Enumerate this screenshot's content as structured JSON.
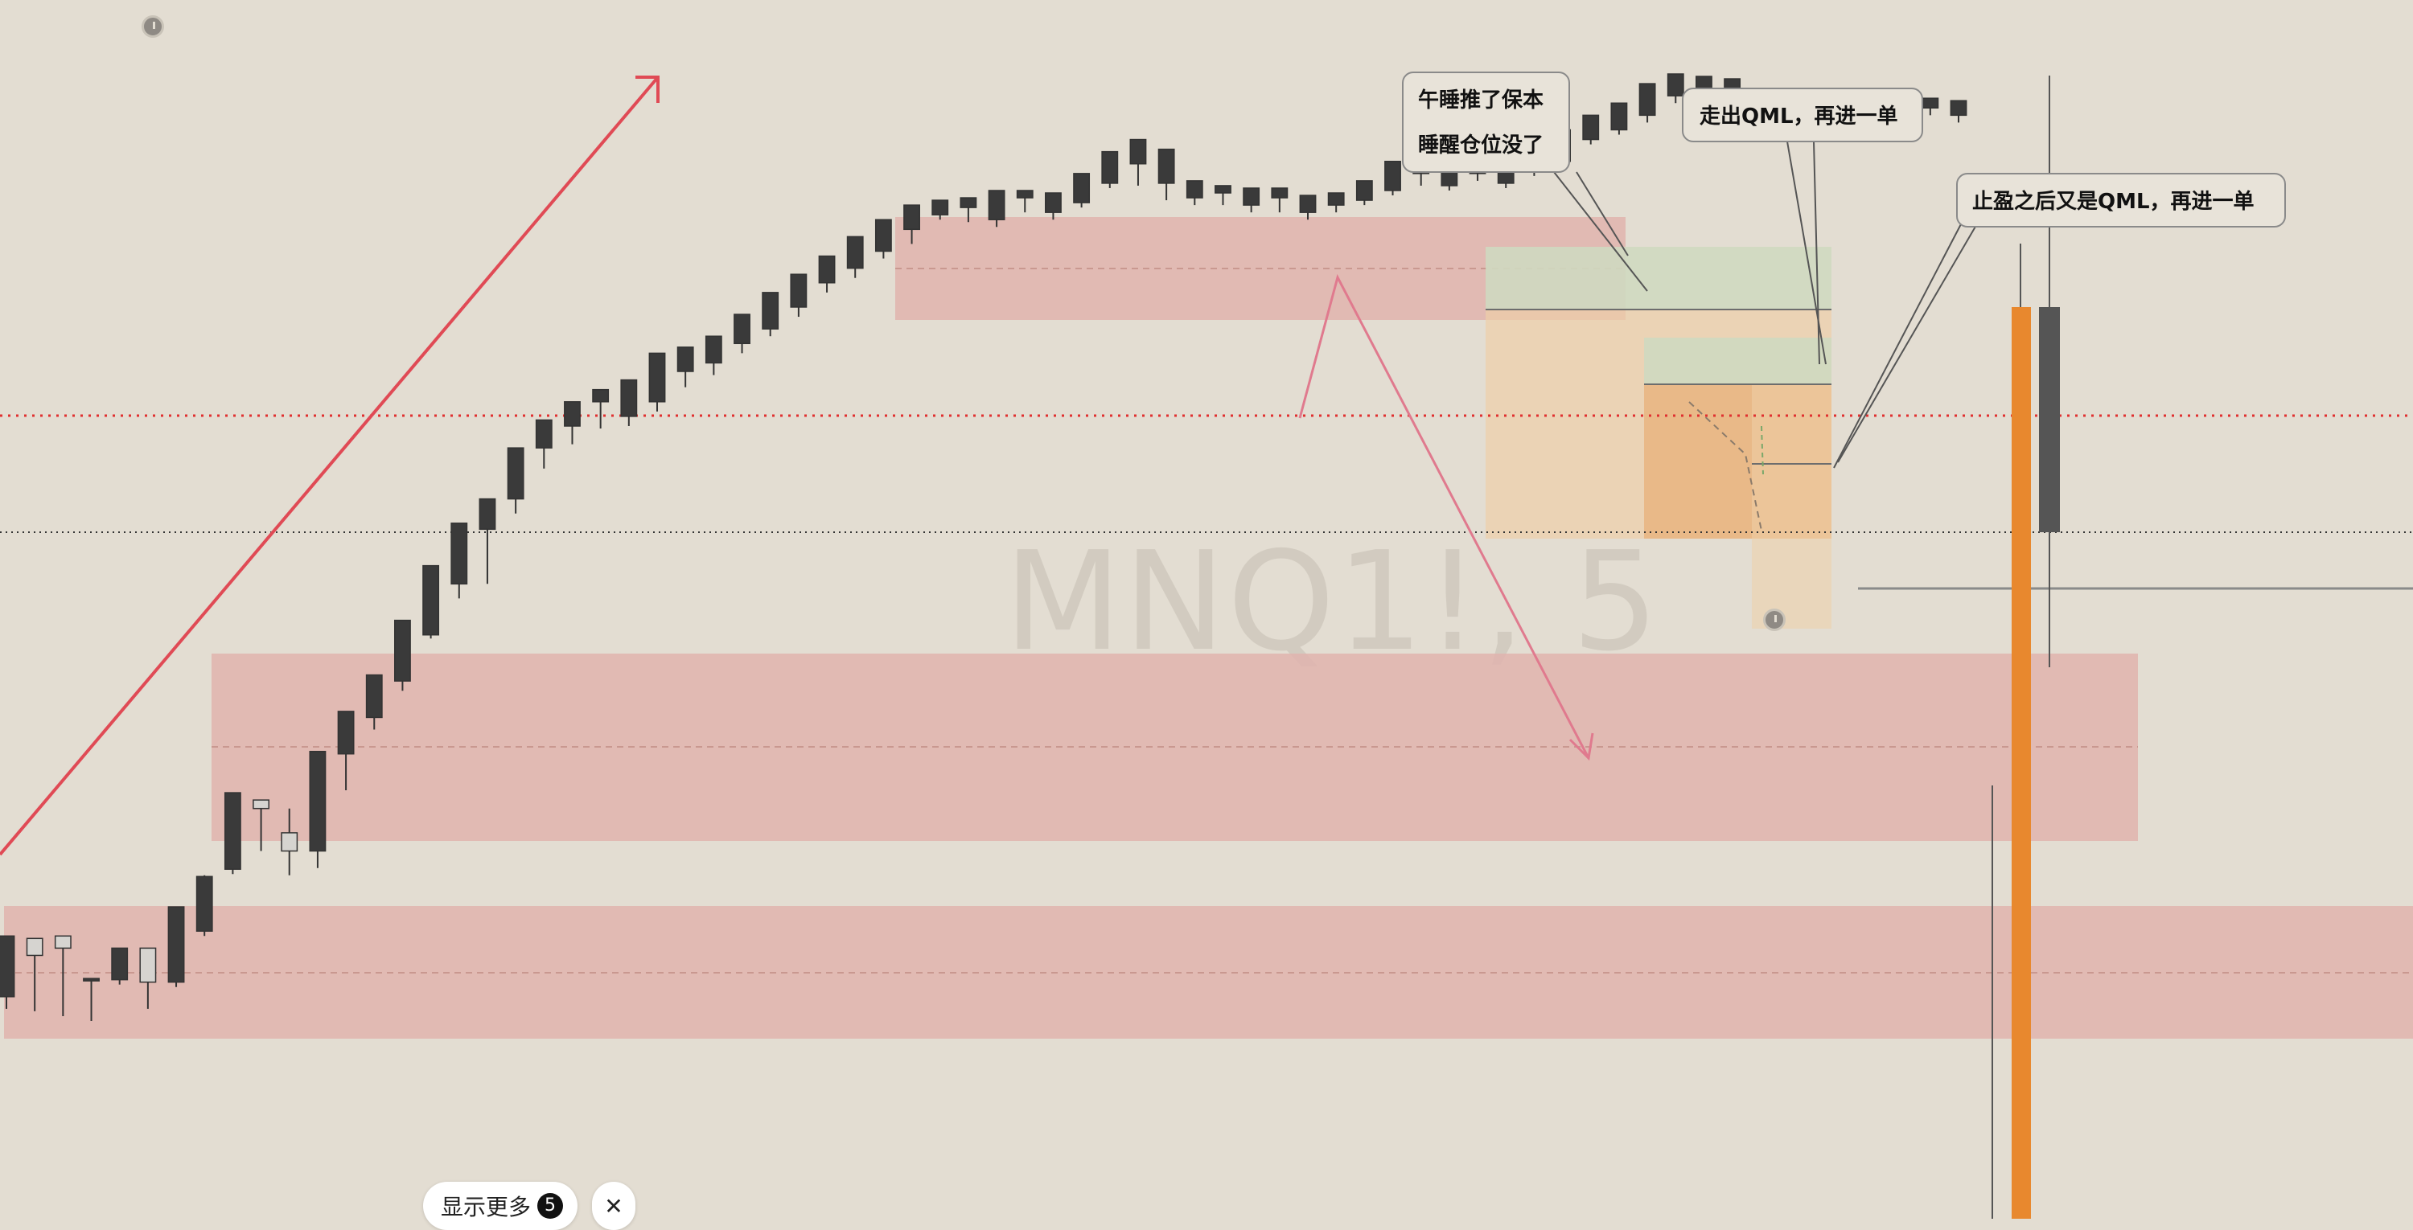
{
  "chart_data": {
    "type": "candlestick",
    "symbol_watermark": "MNQ1!, 5",
    "price_scale_visible": false,
    "time_scale_visible": false,
    "grid": false,
    "candles_ohlc": [
      [
        640,
        650,
        600,
        590
      ],
      [
        592,
        600,
        652,
        606
      ],
      [
        590,
        612,
        656,
        600
      ],
      [
        625,
        648,
        660,
        625
      ],
      [
        626,
        630,
        612,
        600
      ],
      [
        600,
        604,
        650,
        628
      ],
      [
        628,
        632,
        582,
        566
      ],
      [
        586,
        590,
        540,
        541
      ],
      [
        535,
        539,
        480,
        472
      ],
      [
        478,
        520,
        490,
        485
      ],
      [
        505,
        540,
        485,
        520
      ],
      [
        520,
        534,
        440,
        438
      ],
      [
        440,
        470,
        416,
        405
      ],
      [
        410,
        420,
        380,
        375
      ],
      [
        380,
        388,
        340,
        330
      ],
      [
        342,
        345,
        300,
        285
      ],
      [
        300,
        312,
        258,
        250
      ],
      [
        255,
        300,
        236,
        230
      ],
      [
        230,
        242,
        190,
        188
      ],
      [
        188,
        205,
        172,
        165
      ],
      [
        170,
        185,
        152,
        150
      ],
      [
        150,
        172,
        168,
        140
      ],
      [
        162,
        170,
        142,
        132
      ],
      [
        150,
        158,
        120,
        110
      ],
      [
        125,
        138,
        115,
        105
      ],
      [
        118,
        128,
        100,
        96
      ],
      [
        102,
        110,
        88,
        78
      ],
      [
        90,
        96,
        68,
        60
      ],
      [
        72,
        80,
        50,
        45
      ],
      [
        52,
        60,
        36,
        30
      ],
      [
        40,
        48,
        20,
        14
      ],
      [
        26,
        32,
        6,
        0
      ],
      [
        8,
        20,
        -4,
        -12
      ],
      [
        -4,
        0,
        -10,
        -16
      ],
      [
        -10,
        -6,
        2,
        -18
      ],
      [
        0,
        6,
        -20,
        -24
      ],
      [
        -18,
        -14,
        -6,
        -24
      ],
      [
        -6,
        0,
        -16,
        -22
      ],
      [
        -14,
        -10,
        -32,
        -38
      ],
      [
        -30,
        -26,
        -48,
        -56
      ],
      [
        -46,
        -40,
        -28,
        -66
      ],
      [
        -30,
        -26,
        -16,
        -58
      ],
      [
        -18,
        -12,
        -24,
        -32
      ],
      [
        -22,
        -18,
        -12,
        -28
      ],
      [
        -12,
        -6,
        -20,
        -26
      ],
      [
        -18,
        -14,
        -6,
        -26
      ],
      [
        -6,
        0,
        -14,
        -20
      ],
      [
        -12,
        -6,
        -18,
        -22
      ],
      [
        -16,
        -12,
        -26,
        -32
      ],
      [
        -24,
        -20,
        -40,
        -48
      ],
      [
        -38,
        -32,
        -28,
        -54
      ],
      [
        -28,
        -24,
        -40,
        -46
      ],
      [
        -38,
        -34,
        -32,
        -46
      ],
      [
        -30,
        -26,
        -42,
        -48
      ],
      [
        -40,
        -36,
        -50,
        -58
      ],
      [
        -48,
        -44,
        -68,
        -74
      ],
      [
        -66,
        -62,
        -76,
        -86
      ],
      [
        -74,
        -70,
        -88,
        -96
      ],
      [
        -86,
        -80,
        -104,
        -112
      ],
      [
        -102,
        -96,
        -96,
        -120
      ],
      [
        -94,
        -90,
        -110,
        -118
      ],
      [
        -108,
        -100,
        -92,
        -116
      ],
      [
        -92,
        -86,
        -96,
        -104
      ],
      [
        -96,
        -90,
        -88,
        -100
      ],
      [
        -88,
        -82,
        -96,
        -104
      ],
      [
        -96,
        -90,
        -94,
        -100
      ],
      [
        -94,
        -90,
        -88,
        -104
      ],
      [
        -88,
        -82,
        -92,
        -104
      ],
      [
        -92,
        -86,
        -86,
        -100
      ],
      [
        -86,
        -80,
        -92,
        -98
      ]
    ],
    "annotations": [
      {
        "type": "callout",
        "lines": [
          "午睡推了保本",
          "睡醒仓位没了"
        ]
      },
      {
        "type": "callout",
        "lines": [
          "走出QML，再进一单"
        ]
      },
      {
        "type": "callout",
        "lines": [
          "止盈之后又是QML，再进一单"
        ]
      },
      {
        "type": "trend_arrow",
        "color": "#e04a55"
      },
      {
        "type": "path_arrow",
        "color": "#e07a8e"
      },
      {
        "type": "supply_demand_zones",
        "color": "#e0b4ae",
        "count": 4
      },
      {
        "type": "position_long",
        "profit_color": "#cfd9c0",
        "loss_color": "#eeccaa",
        "count": 2
      },
      {
        "type": "horizontal_line",
        "style": "dotted",
        "color": "#e03030"
      },
      {
        "type": "horizontal_line",
        "style": "dotted",
        "color": "#333333"
      }
    ],
    "volume_bars_right": {
      "up_color": "#e8882e",
      "down_color": "#555555"
    }
  },
  "ui": {
    "show_more_label": "显示更多",
    "show_more_count": "5",
    "close_glyph": "✕"
  }
}
